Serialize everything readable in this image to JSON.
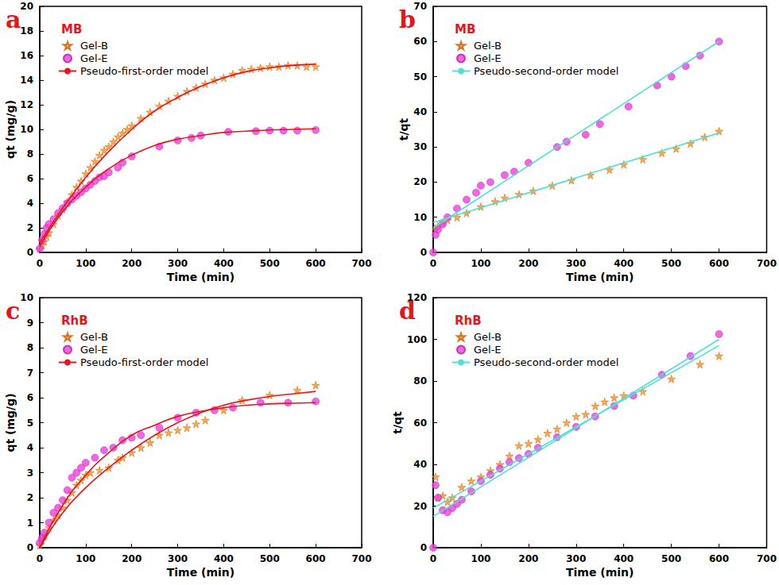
{
  "chart_data": [
    {
      "type": "scatter",
      "title": "a",
      "subtitle": "MB",
      "x_label": "Time (min)",
      "y_label": "qt (mg/g)",
      "xlim": [
        0,
        700
      ],
      "xticks": [
        0,
        100,
        200,
        300,
        400,
        500,
        600,
        700
      ],
      "ylim": [
        0,
        20
      ],
      "yticks": [
        0,
        2,
        4,
        6,
        8,
        10,
        12,
        14,
        16,
        18,
        20
      ],
      "grid": false,
      "legend": "upper left",
      "series": [
        {
          "name": "Gel-B",
          "type": "scatter",
          "color": "#f7941d",
          "marker": "star",
          "x": [
            0,
            5,
            10,
            15,
            20,
            30,
            40,
            50,
            60,
            70,
            80,
            90,
            100,
            110,
            120,
            130,
            140,
            150,
            160,
            170,
            180,
            190,
            200,
            220,
            240,
            260,
            280,
            300,
            320,
            340,
            360,
            380,
            400,
            420,
            440,
            460,
            480,
            500,
            520,
            540,
            560,
            580,
            600
          ],
          "values": [
            0.3,
            0.6,
            0.9,
            1.3,
            1.6,
            2.3,
            3.0,
            3.5,
            4.1,
            4.7,
            5.3,
            5.8,
            6.4,
            6.9,
            7.4,
            7.9,
            8.3,
            8.6,
            9.0,
            9.4,
            9.7,
            10.0,
            10.3,
            10.9,
            11.4,
            11.9,
            12.3,
            12.7,
            13.1,
            13.4,
            13.7,
            14.0,
            14.2,
            14.5,
            14.8,
            14.9,
            15.0,
            15.1,
            15.1,
            15.2,
            15.2,
            15.1,
            15.1
          ]
        },
        {
          "name": "Gel-E",
          "type": "scatter",
          "color": "#ee3fe0",
          "marker": "circle",
          "x": [
            0,
            5,
            10,
            15,
            20,
            30,
            40,
            50,
            60,
            70,
            80,
            90,
            100,
            110,
            120,
            130,
            140,
            150,
            170,
            180,
            200,
            260,
            300,
            330,
            350,
            410,
            470,
            500,
            530,
            560,
            600
          ],
          "values": [
            0.3,
            1.0,
            1.5,
            2.0,
            2.3,
            2.7,
            3.2,
            3.6,
            4.0,
            4.3,
            4.6,
            4.9,
            5.2,
            5.5,
            5.8,
            6.1,
            6.2,
            6.5,
            6.9,
            7.3,
            7.8,
            8.6,
            9.1,
            9.3,
            9.5,
            9.8,
            9.85,
            9.9,
            9.9,
            9.9,
            9.95
          ]
        },
        {
          "name": "Pseudo-first-order model",
          "type": "line",
          "color": "#e8141c",
          "line_style": "solid",
          "x": [
            0,
            50,
            100,
            150,
            200,
            250,
            300,
            350,
            400,
            450,
            500,
            550,
            600
          ],
          "values": [
            0.8,
            3.6,
            6.1,
            8.2,
            10.0,
            11.5,
            12.6,
            13.5,
            14.2,
            14.7,
            15.0,
            15.2,
            15.3
          ]
        },
        {
          "name": "Pseudo-first-order model",
          "type": "line",
          "color": "#e8141c",
          "line_style": "solid",
          "x": [
            0,
            50,
            100,
            150,
            200,
            250,
            300,
            350,
            400,
            450,
            500,
            550,
            600
          ],
          "values": [
            0.5,
            3.3,
            5.3,
            6.8,
            7.9,
            8.7,
            9.2,
            9.5,
            9.75,
            9.85,
            9.95,
            10.0,
            10.05
          ]
        }
      ]
    },
    {
      "type": "scatter",
      "title": "b",
      "subtitle": "MB",
      "x_label": "Time (min)",
      "y_label": "t/qt",
      "xlim": [
        0,
        700
      ],
      "xticks": [
        0,
        100,
        200,
        300,
        400,
        500,
        600,
        700
      ],
      "ylim": [
        0,
        70
      ],
      "yticks": [
        0,
        10,
        20,
        30,
        40,
        50,
        60,
        70
      ],
      "grid": false,
      "legend": "upper left",
      "series": [
        {
          "name": "Gel-B",
          "type": "scatter",
          "color": "#f7941d",
          "marker": "star",
          "x": [
            5,
            10,
            20,
            30,
            50,
            70,
            100,
            130,
            150,
            180,
            210,
            250,
            290,
            330,
            370,
            400,
            440,
            480,
            510,
            540,
            570,
            600
          ],
          "values": [
            6.5,
            7.5,
            8.5,
            9.2,
            10.0,
            11.2,
            13.0,
            14.5,
            15.5,
            16.5,
            17.5,
            19.0,
            20.5,
            22.0,
            23.5,
            25.0,
            26.5,
            28.3,
            29.5,
            31.0,
            32.8,
            34.5
          ]
        },
        {
          "name": "Gel-E",
          "type": "scatter",
          "color": "#ee3fe0",
          "marker": "circle",
          "x": [
            0,
            5,
            10,
            20,
            30,
            50,
            70,
            90,
            100,
            120,
            150,
            170,
            200,
            260,
            280,
            320,
            350,
            410,
            470,
            500,
            530,
            560,
            600
          ],
          "values": [
            0,
            5,
            6.5,
            8,
            10,
            12.5,
            15,
            17,
            19,
            20,
            22,
            23,
            25.5,
            30,
            31.5,
            33.5,
            36.5,
            41.5,
            47.5,
            50,
            53,
            56,
            60
          ]
        },
        {
          "name": "Pseudo-second-order model",
          "type": "line",
          "color": "#4fe0d4",
          "line_style": "solid",
          "x": [
            0,
            300,
            600
          ],
          "values": [
            8.5,
            21.2,
            34
          ]
        },
        {
          "name": "Pseudo-second-order model",
          "type": "line",
          "color": "#4fe0d4",
          "line_style": "solid",
          "x": [
            0,
            300,
            600
          ],
          "values": [
            7,
            33.5,
            60
          ]
        }
      ]
    },
    {
      "type": "scatter",
      "title": "c",
      "subtitle": "RhB",
      "x_label": "Time (min)",
      "y_label": "qt (mg/g)",
      "xlim": [
        0,
        700
      ],
      "xticks": [
        0,
        100,
        200,
        300,
        400,
        500,
        600,
        700
      ],
      "ylim": [
        0,
        10
      ],
      "yticks": [
        0,
        1,
        2,
        3,
        4,
        5,
        6,
        7,
        8,
        9,
        10
      ],
      "grid": false,
      "legend": "upper left",
      "series": [
        {
          "name": "Gel-B",
          "type": "scatter",
          "color": "#f7941d",
          "marker": "star",
          "x": [
            0,
            5,
            10,
            20,
            30,
            40,
            50,
            60,
            70,
            80,
            90,
            100,
            110,
            130,
            150,
            170,
            180,
            200,
            220,
            240,
            260,
            280,
            300,
            320,
            340,
            360,
            400,
            440,
            500,
            560,
            600
          ],
          "values": [
            0.1,
            0.3,
            0.5,
            0.8,
            1.1,
            1.3,
            1.6,
            1.9,
            2.2,
            2.5,
            2.7,
            2.9,
            3.0,
            3.1,
            3.2,
            3.5,
            3.6,
            3.8,
            4.0,
            4.2,
            4.5,
            4.6,
            4.7,
            4.8,
            4.95,
            5.1,
            5.5,
            5.9,
            6.1,
            6.3,
            6.5
          ]
        },
        {
          "name": "Gel-E",
          "type": "scatter",
          "color": "#ee3fe0",
          "marker": "circle",
          "x": [
            0,
            5,
            10,
            20,
            30,
            40,
            50,
            60,
            70,
            80,
            90,
            100,
            120,
            140,
            160,
            180,
            200,
            220,
            260,
            300,
            340,
            380,
            420,
            480,
            540,
            600
          ],
          "values": [
            0.2,
            0.4,
            0.6,
            1.0,
            1.4,
            1.6,
            1.9,
            2.3,
            2.8,
            3.0,
            3.2,
            3.4,
            3.6,
            3.9,
            4.0,
            4.3,
            4.4,
            4.5,
            4.8,
            5.2,
            5.4,
            5.5,
            5.6,
            5.8,
            5.8,
            5.85
          ]
        },
        {
          "name": "Pseudo-first-order model",
          "type": "line",
          "color": "#e8141c",
          "line_style": "solid",
          "x": [
            0,
            50,
            100,
            150,
            200,
            250,
            300,
            350,
            400,
            450,
            500,
            550,
            600
          ],
          "values": [
            0,
            1.4,
            2.4,
            3.2,
            3.9,
            4.5,
            5.0,
            5.4,
            5.7,
            5.9,
            6.05,
            6.15,
            6.25
          ]
        },
        {
          "name": "Pseudo-first-order model",
          "type": "line",
          "color": "#e8141c",
          "line_style": "solid",
          "x": [
            0,
            50,
            100,
            150,
            200,
            250,
            300,
            350,
            400,
            450,
            500,
            550,
            600
          ],
          "values": [
            0,
            1.7,
            2.9,
            3.8,
            4.5,
            4.9,
            5.25,
            5.45,
            5.6,
            5.7,
            5.75,
            5.78,
            5.8
          ]
        }
      ]
    },
    {
      "type": "scatter",
      "title": "d",
      "subtitle": "RhB",
      "x_label": "Time (min)",
      "y_label": "t/qt",
      "xlim": [
        0,
        700
      ],
      "xticks": [
        0,
        100,
        200,
        300,
        400,
        500,
        600,
        700
      ],
      "ylim": [
        0,
        120
      ],
      "yticks": [
        0,
        20,
        40,
        60,
        80,
        100,
        120
      ],
      "grid": false,
      "legend": "upper left",
      "series": [
        {
          "name": "Gel-B",
          "type": "scatter",
          "color": "#f7941d",
          "marker": "star",
          "x": [
            5,
            10,
            20,
            30,
            40,
            60,
            80,
            100,
            120,
            140,
            160,
            180,
            200,
            220,
            240,
            260,
            280,
            300,
            320,
            340,
            360,
            380,
            400,
            440,
            500,
            560,
            600
          ],
          "values": [
            34,
            24,
            25,
            22,
            24,
            29,
            32,
            34,
            37,
            40,
            44,
            49,
            50,
            52,
            55,
            57,
            60,
            63,
            64,
            68,
            70,
            72,
            73,
            75,
            81,
            88,
            92
          ]
        },
        {
          "name": "Gel-E",
          "type": "scatter",
          "color": "#ee3fe0",
          "marker": "circle",
          "x": [
            0,
            5,
            10,
            20,
            30,
            40,
            50,
            60,
            80,
            100,
            120,
            140,
            160,
            180,
            200,
            220,
            260,
            300,
            340,
            380,
            420,
            480,
            540,
            600
          ],
          "values": [
            0,
            30,
            24,
            18,
            17,
            19,
            21,
            23,
            27,
            32,
            35,
            38,
            41,
            43,
            45,
            48,
            53,
            58,
            63,
            68,
            73,
            83,
            92,
            102.5
          ]
        },
        {
          "name": "Pseudo-second-order model",
          "type": "line",
          "color": "#4fe0d4",
          "line_style": "solid",
          "x": [
            0,
            300,
            600
          ],
          "values": [
            19,
            58,
            97
          ]
        },
        {
          "name": "Pseudo-second-order model",
          "type": "line",
          "color": "#4fe0d4",
          "line_style": "solid",
          "x": [
            0,
            300,
            600
          ],
          "values": [
            15,
            57.5,
            100
          ]
        }
      ]
    }
  ]
}
